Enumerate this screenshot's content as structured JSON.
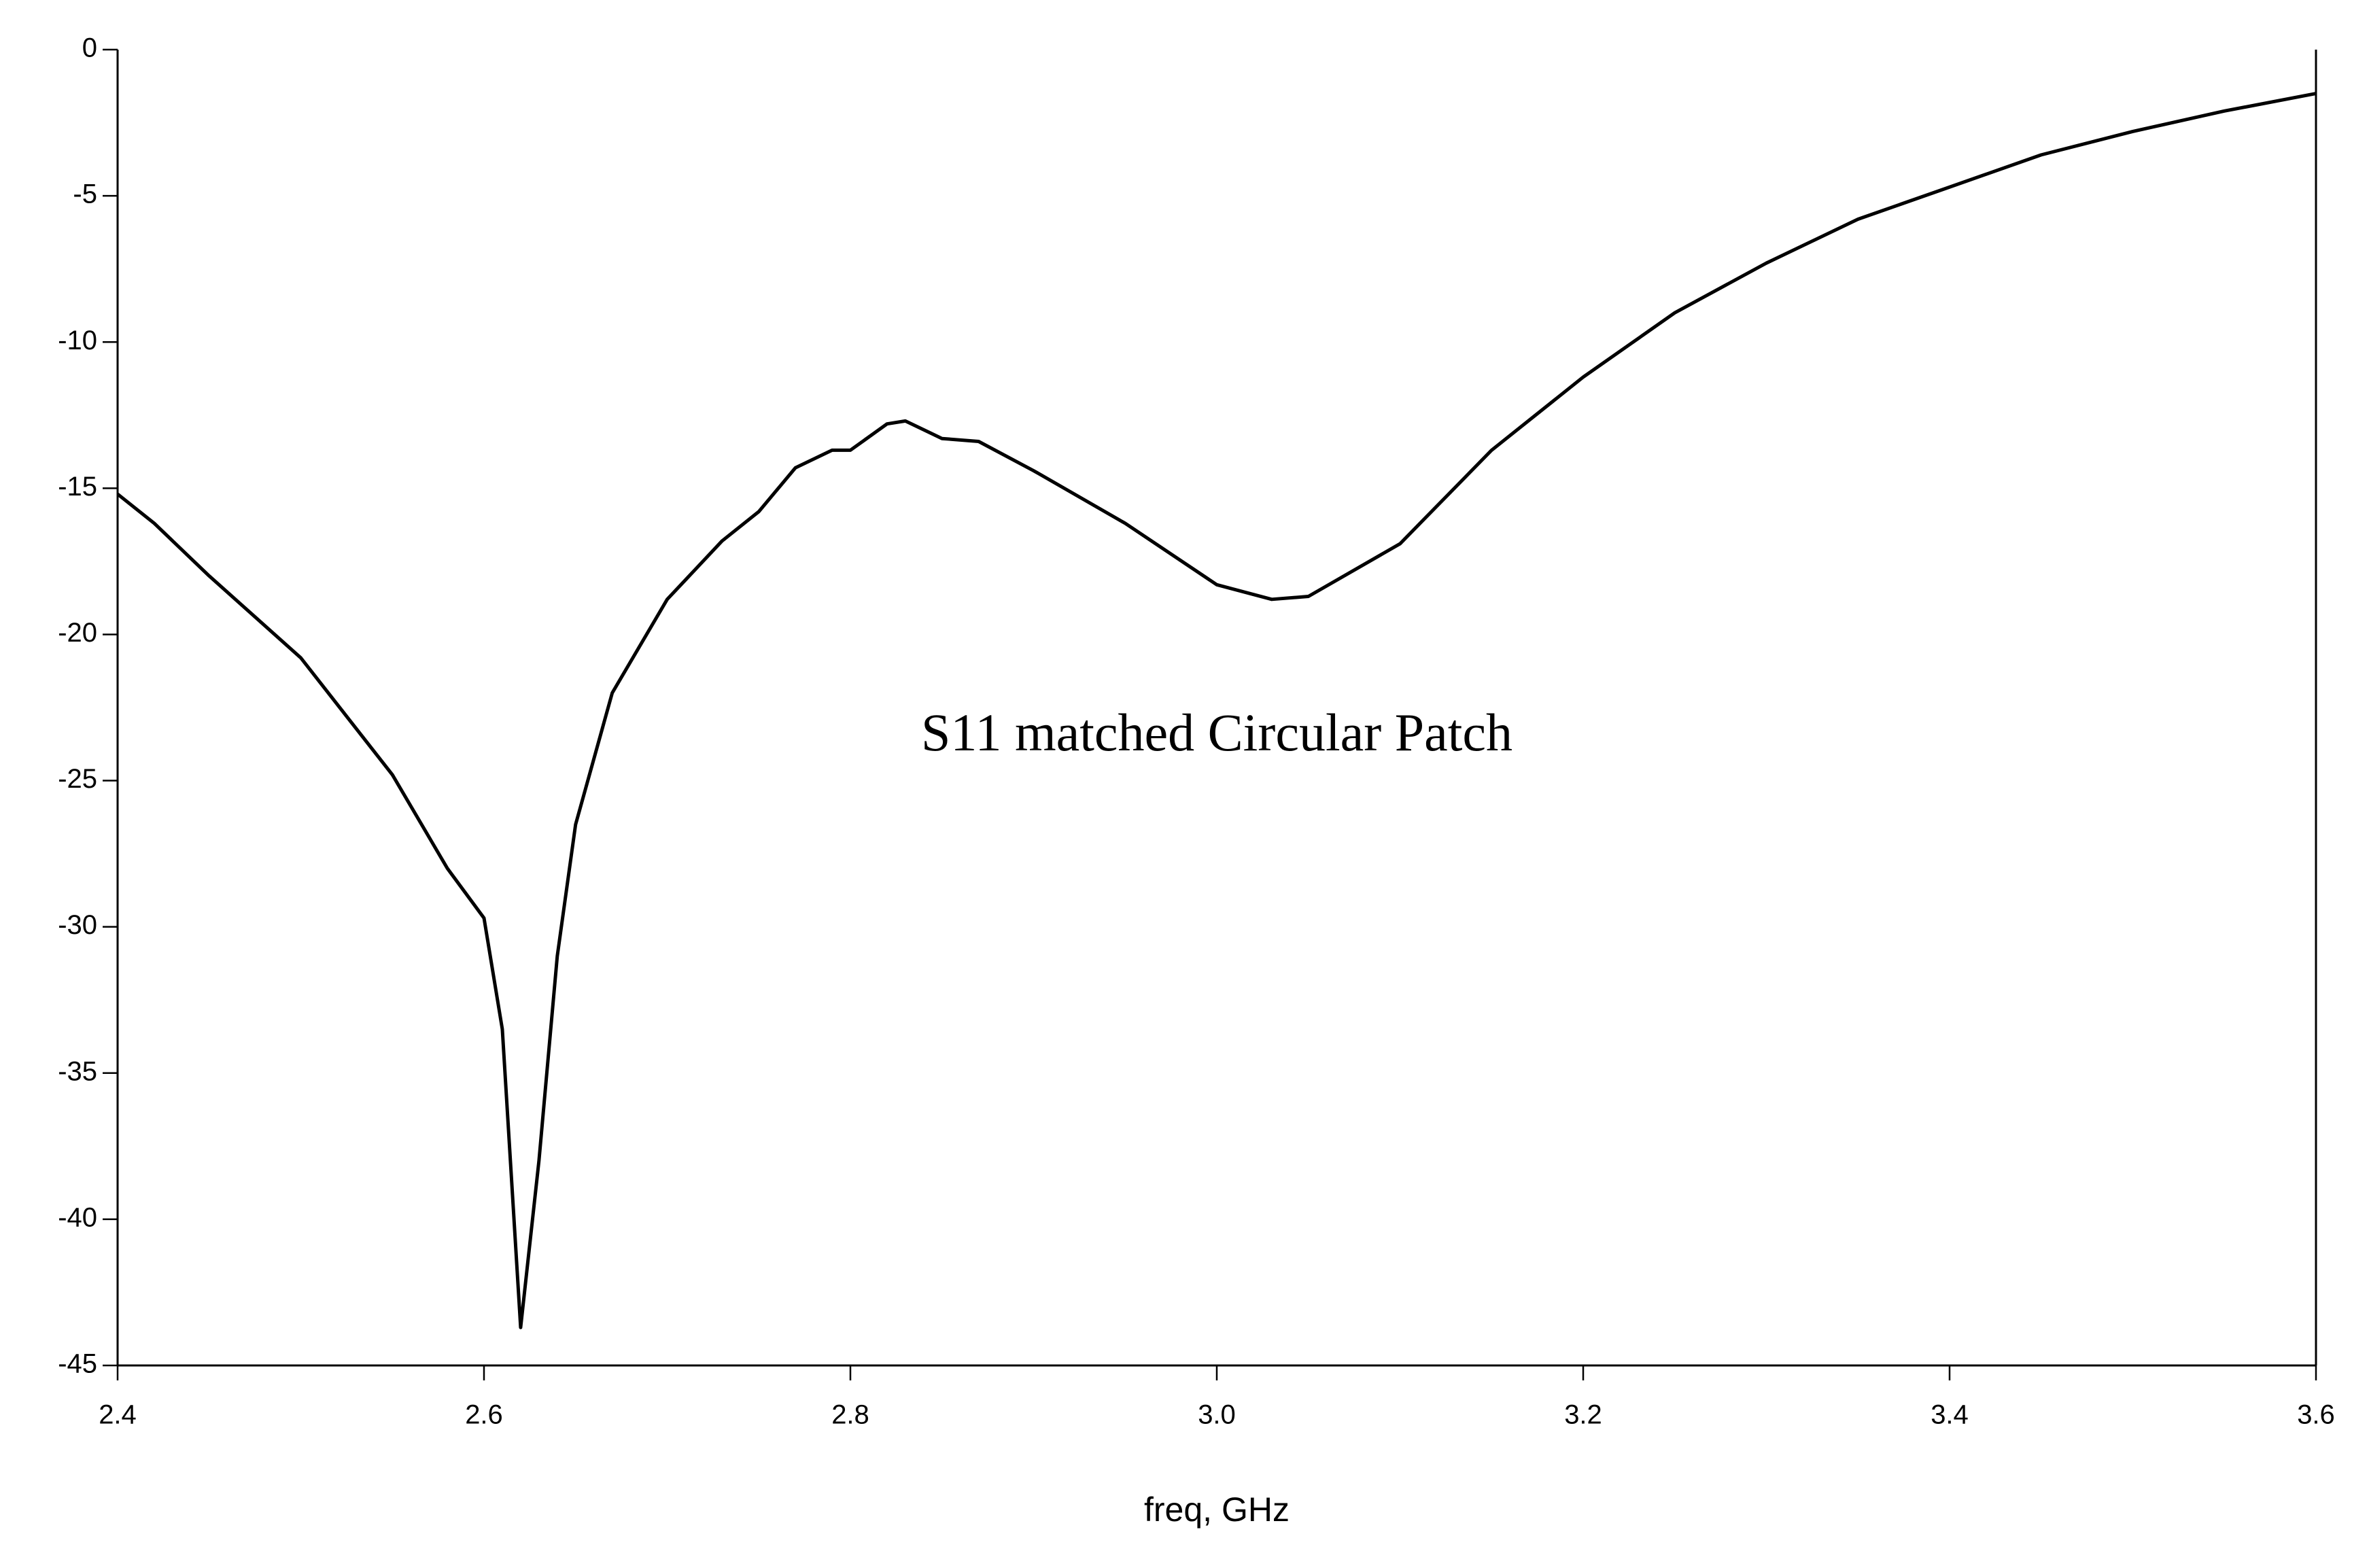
{
  "chart_data": {
    "type": "line",
    "x_label": "freq, GHz",
    "annotation": "S11 matched Circular Patch",
    "annotation_color": "#e00000",
    "x": [
      2.4,
      2.42,
      2.45,
      2.5,
      2.55,
      2.58,
      2.6,
      2.61,
      2.62,
      2.63,
      2.64,
      2.65,
      2.67,
      2.7,
      2.73,
      2.75,
      2.77,
      2.79,
      2.8,
      2.82,
      2.83,
      2.85,
      2.87,
      2.9,
      2.95,
      3.0,
      3.03,
      3.05,
      3.1,
      3.15,
      3.2,
      3.25,
      3.3,
      3.35,
      3.4,
      3.45,
      3.5,
      3.55,
      3.6
    ],
    "series": [
      {
        "color": "#000000",
        "values": [
          -15.2,
          -16.2,
          -18.0,
          -20.8,
          -24.8,
          -28.0,
          -29.7,
          -33.5,
          -43.7,
          -38.0,
          -31.0,
          -26.5,
          -22.0,
          -18.8,
          -16.8,
          -15.8,
          -14.3,
          -13.7,
          -13.7,
          -12.8,
          -12.7,
          -13.3,
          -13.4,
          -14.4,
          -16.2,
          -18.3,
          -18.8,
          -18.7,
          -16.9,
          -13.7,
          -11.2,
          -9.0,
          -7.3,
          -5.8,
          -4.7,
          -3.6,
          -2.8,
          -2.1,
          -1.5
        ]
      }
    ],
    "xlim": [
      2.4,
      3.6
    ],
    "xticks": [
      2.4,
      2.6,
      2.8,
      {
        "value": 3,
        "label": "3.0"
      },
      3.2,
      3.4,
      3.6
    ],
    "ylim": [
      -45,
      0
    ],
    "yticks": [
      0,
      -5,
      -10,
      -15,
      -20,
      -25,
      -30,
      -35,
      -40,
      -45
    ],
    "grid": false
  }
}
